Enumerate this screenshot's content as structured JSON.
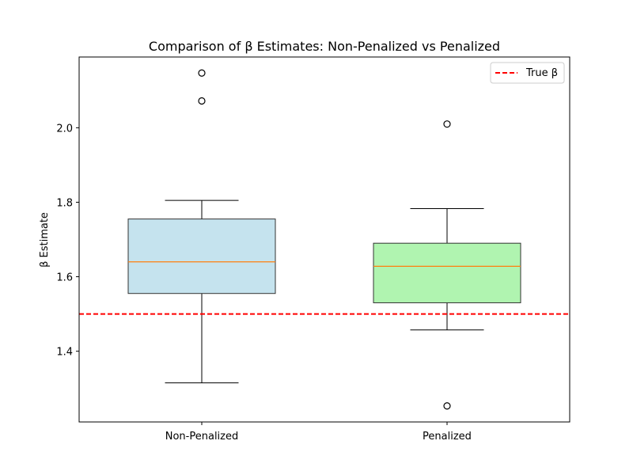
{
  "chart_data": {
    "type": "box",
    "title": "Comparison of β Estimates: Non-Penalized vs Penalized",
    "xlabel": "",
    "ylabel": "β Estimate",
    "ylim": [
      1.21,
      2.19
    ],
    "yticks": [
      1.4,
      1.6,
      1.8,
      2.0
    ],
    "ytick_labels": [
      "1.4",
      "1.6",
      "1.8",
      "2.0"
    ],
    "grid": false,
    "legend_position": "top-right",
    "reference_line": {
      "label": "True β",
      "value": 1.5,
      "color": "#ff0000",
      "style": "dashed"
    },
    "boxes": [
      {
        "category": "Non-Penalized",
        "whisker_low": 1.315,
        "q1": 1.555,
        "median": 1.64,
        "q3": 1.755,
        "whisker_high": 1.805,
        "outliers": [
          2.072,
          2.147
        ],
        "fill": "#c5e3ee"
      },
      {
        "category": "Penalized",
        "whisker_low": 1.457,
        "q1": 1.53,
        "median": 1.628,
        "q3": 1.69,
        "whisker_high": 1.783,
        "outliers": [
          1.253,
          2.01
        ],
        "fill": "#b0f4b0"
      }
    ],
    "colors": {
      "median": "#ff7f0e",
      "box_edge": "#333333",
      "outlier_edge": "#000000"
    }
  }
}
